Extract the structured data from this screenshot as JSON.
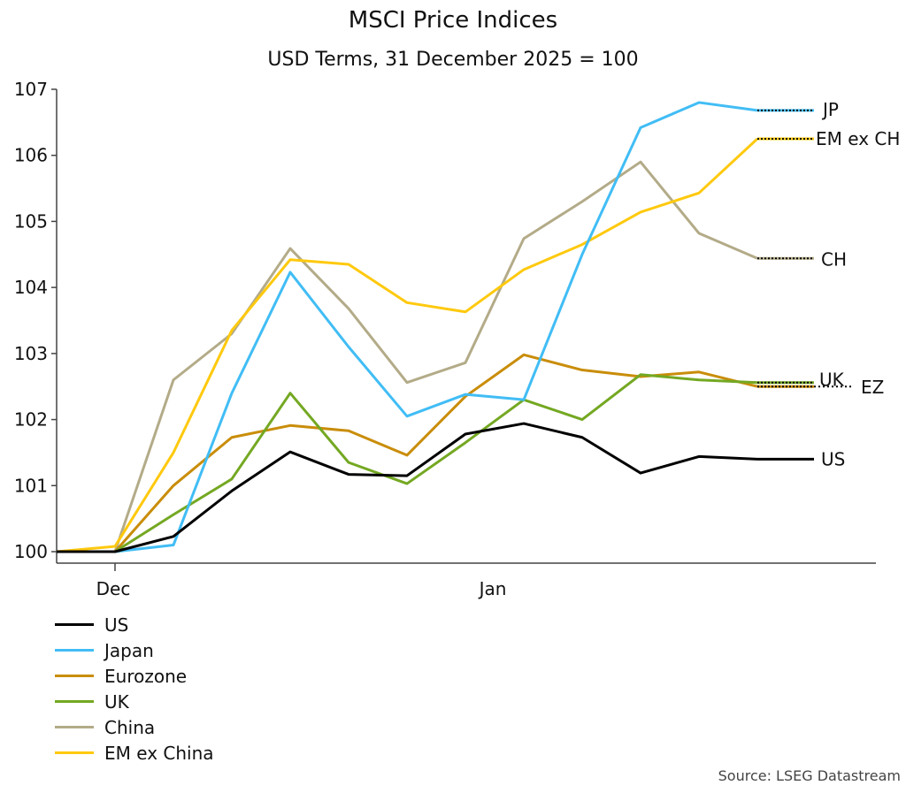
{
  "chart_data": {
    "type": "line",
    "title": "MSCI Price Indices",
    "subtitle": "USD Terms, 31 December 2025 = 100",
    "xlabel": "",
    "ylabel": "",
    "ylim": [
      100,
      107
    ],
    "yticks": [
      100,
      101,
      102,
      103,
      104,
      105,
      106,
      107
    ],
    "xtick_labels": [
      {
        "label": "Dec",
        "index": 1
      },
      {
        "label": "Jan",
        "index": 7.5
      }
    ],
    "grid": false,
    "legend": "bottom-left",
    "series": [
      {
        "name": "US",
        "end_label": "US",
        "color": "#000000",
        "values": [
          100,
          100,
          100.23,
          100.92,
          101.51,
          101.17,
          101.15,
          101.78,
          101.94,
          101.73,
          101.19,
          101.44,
          101.4
        ]
      },
      {
        "name": "Japan",
        "end_label": "JP",
        "color": "#41bdf5",
        "values": [
          100,
          100,
          100.1,
          102.4,
          104.23,
          103.1,
          102.05,
          102.38,
          102.3,
          104.5,
          106.42,
          106.8,
          106.68
        ]
      },
      {
        "name": "Eurozone",
        "end_label": "EZ",
        "color": "#c98d0a",
        "values": [
          100,
          100,
          101.0,
          101.73,
          101.91,
          101.83,
          101.46,
          102.35,
          102.98,
          102.75,
          102.65,
          102.72,
          102.5
        ]
      },
      {
        "name": "UK",
        "end_label": "UK",
        "color": "#74a822",
        "values": [
          100,
          100,
          100.56,
          101.1,
          102.4,
          101.35,
          101.03,
          101.65,
          102.3,
          102.0,
          102.68,
          102.6,
          102.56
        ]
      },
      {
        "name": "China",
        "end_label": "CH",
        "color": "#b3ab88",
        "values": [
          100,
          100,
          102.6,
          103.3,
          104.59,
          103.68,
          102.56,
          102.86,
          104.74,
          105.3,
          105.9,
          104.82,
          104.44
        ]
      },
      {
        "name": "EM ex China",
        "end_label": "EM ex CH",
        "color": "#ffc90e",
        "values": [
          100,
          100.08,
          101.5,
          103.35,
          104.42,
          104.35,
          103.77,
          103.63,
          104.27,
          104.65,
          105.14,
          105.43,
          106.25
        ]
      }
    ],
    "source": "Source: LSEG Datastream"
  }
}
